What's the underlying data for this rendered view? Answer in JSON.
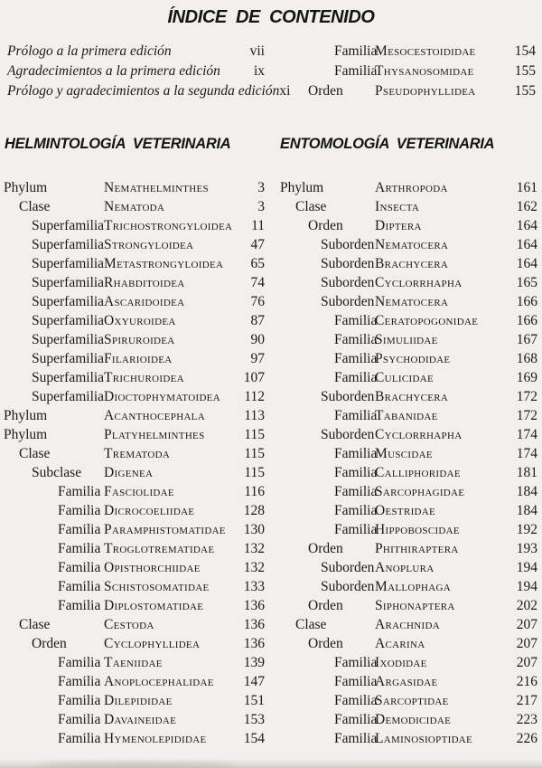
{
  "page": {
    "title": "ÍNDICE DE CONTENIDO"
  },
  "front_matter": {
    "entries": [
      {
        "label": "Prólogo a la primera edición",
        "page": "vii"
      },
      {
        "label": "Agradecimientos a la primera edición",
        "page": "ix"
      },
      {
        "label": "Prólogo y agradecimientos a la segunda edición",
        "page": "xi"
      }
    ]
  },
  "continuation": {
    "entries": [
      {
        "rank": "Familia",
        "name": "Mesocestoididae",
        "page": "154"
      },
      {
        "rank": "Familia",
        "name": "Thysanosomidae",
        "page": "155"
      },
      {
        "rank": "Orden",
        "name": "Pseudophyllidea",
        "page": "155"
      }
    ]
  },
  "sections": [
    {
      "heading": "HELMINTOLOGÍA VETERINARIA",
      "entries": [
        {
          "rank": "Phylum",
          "name": "Nemathelminthes",
          "page": "3"
        },
        {
          "rank": "Clase",
          "name": "Nematoda",
          "page": "3"
        },
        {
          "rank": "Superfamilia",
          "name": "Trichostrongyloidea",
          "page": "11"
        },
        {
          "rank": "Superfamilia",
          "name": "Strongyloidea",
          "page": "47"
        },
        {
          "rank": "Superfamilia",
          "name": "Metastrongyloidea",
          "page": "65"
        },
        {
          "rank": "Superfamilia",
          "name": "Rhabditoidea",
          "page": "74"
        },
        {
          "rank": "Superfamilia",
          "name": "Ascaridoidea",
          "page": "76"
        },
        {
          "rank": "Superfamilia",
          "name": "Oxyuroidea",
          "page": "87"
        },
        {
          "rank": "Superfamilia",
          "name": "Spiruroidea",
          "page": "90"
        },
        {
          "rank": "Superfamilia",
          "name": "Filarioidea",
          "page": "97"
        },
        {
          "rank": "Superfamilia",
          "name": "Trichuroidea",
          "page": "107"
        },
        {
          "rank": "Superfamilia",
          "name": "Dioctophymatoidea",
          "page": "112"
        },
        {
          "rank": "Phylum",
          "name": "Acanthocephala",
          "page": "113"
        },
        {
          "rank": "Phylum",
          "name": "Platyhelminthes",
          "page": "115"
        },
        {
          "rank": "Clase",
          "name": "Trematoda",
          "page": "115"
        },
        {
          "rank": "Subclase",
          "name": "Digenea",
          "page": "115"
        },
        {
          "rank": "Familia",
          "name": "Fasciolidae",
          "page": "116"
        },
        {
          "rank": "Familia",
          "name": "Dicrocoeliidae",
          "page": "128"
        },
        {
          "rank": "Familia",
          "name": "Paramphistomatidae",
          "page": "130"
        },
        {
          "rank": "Familia",
          "name": "Troglotrematidae",
          "page": "132"
        },
        {
          "rank": "Familia",
          "name": "Opisthorchiidae",
          "page": "132"
        },
        {
          "rank": "Familia",
          "name": "Schistosomatidae",
          "page": "133"
        },
        {
          "rank": "Familia",
          "name": "Diplostomatidae",
          "page": "136"
        },
        {
          "rank": "Clase",
          "name": "Cestoda",
          "page": "136"
        },
        {
          "rank": "Orden",
          "name": "Cyclophyllidea",
          "page": "136"
        },
        {
          "rank": "Familia",
          "name": "Taeniidae",
          "page": "139"
        },
        {
          "rank": "Familia",
          "name": "Anoplocephalidae",
          "page": "147"
        },
        {
          "rank": "Familia",
          "name": "Dilepididae",
          "page": "151"
        },
        {
          "rank": "Familia",
          "name": "Davaineidae",
          "page": "153"
        },
        {
          "rank": "Familia",
          "name": "Hymenolepididae",
          "page": "154"
        }
      ]
    },
    {
      "heading": "ENTOMOLOGÍA VETERINARIA",
      "entries": [
        {
          "rank": "Phylum",
          "name": "Arthropoda",
          "page": "161"
        },
        {
          "rank": "Clase",
          "name": "Insecta",
          "page": "162"
        },
        {
          "rank": "Orden",
          "name": "Diptera",
          "page": "164"
        },
        {
          "rank": "Suborden",
          "name": "Nematocera",
          "page": "164"
        },
        {
          "rank": "Suborden",
          "name": "Brachycera",
          "page": "164"
        },
        {
          "rank": "Suborden",
          "name": "Cyclorrhapha",
          "page": "165"
        },
        {
          "rank": "Suborden",
          "name": "Nematocera",
          "page": "166"
        },
        {
          "rank": "Familia",
          "name": "Ceratopogonidae",
          "page": "166"
        },
        {
          "rank": "Familia",
          "name": "Simuliidae",
          "page": "167"
        },
        {
          "rank": "Familia",
          "name": "Psychodidae",
          "page": "168"
        },
        {
          "rank": "Familia",
          "name": "Culicidae",
          "page": "169"
        },
        {
          "rank": "Suborden",
          "name": "Brachycera",
          "page": "172"
        },
        {
          "rank": "Familia",
          "name": "Tabanidae",
          "page": "172"
        },
        {
          "rank": "Suborden",
          "name": "Cyclorrhapha",
          "page": "174"
        },
        {
          "rank": "Familia",
          "name": "Muscidae",
          "page": "174"
        },
        {
          "rank": "Familia",
          "name": "Calliphoridae",
          "page": "181"
        },
        {
          "rank": "Familia",
          "name": "Sarcophagidae",
          "page": "184"
        },
        {
          "rank": "Familia",
          "name": "Oestridae",
          "page": "184"
        },
        {
          "rank": "Familia",
          "name": "Hippoboscidae",
          "page": "192"
        },
        {
          "rank": "Orden",
          "name": "Phithiraptera",
          "page": "193"
        },
        {
          "rank": "Suborden",
          "name": "Anoplura",
          "page": "194"
        },
        {
          "rank": "Suborden",
          "name": "Mallophaga",
          "page": "194"
        },
        {
          "rank": "Orden",
          "name": "Siphonaptera",
          "page": "202"
        },
        {
          "rank": "Clase",
          "name": "Arachnida",
          "page": "207"
        },
        {
          "rank": "Orden",
          "name": "Acarina",
          "page": "207"
        },
        {
          "rank": "Familia",
          "name": "Ixodidae",
          "page": "207"
        },
        {
          "rank": "Familia",
          "name": "Argasidae",
          "page": "216"
        },
        {
          "rank": "Familia",
          "name": "Sarcoptidae",
          "page": "217"
        },
        {
          "rank": "Familia",
          "name": "Demodicidae",
          "page": "223"
        },
        {
          "rank": "Familia",
          "name": "Laminosioptidae",
          "page": "226"
        }
      ]
    }
  ]
}
